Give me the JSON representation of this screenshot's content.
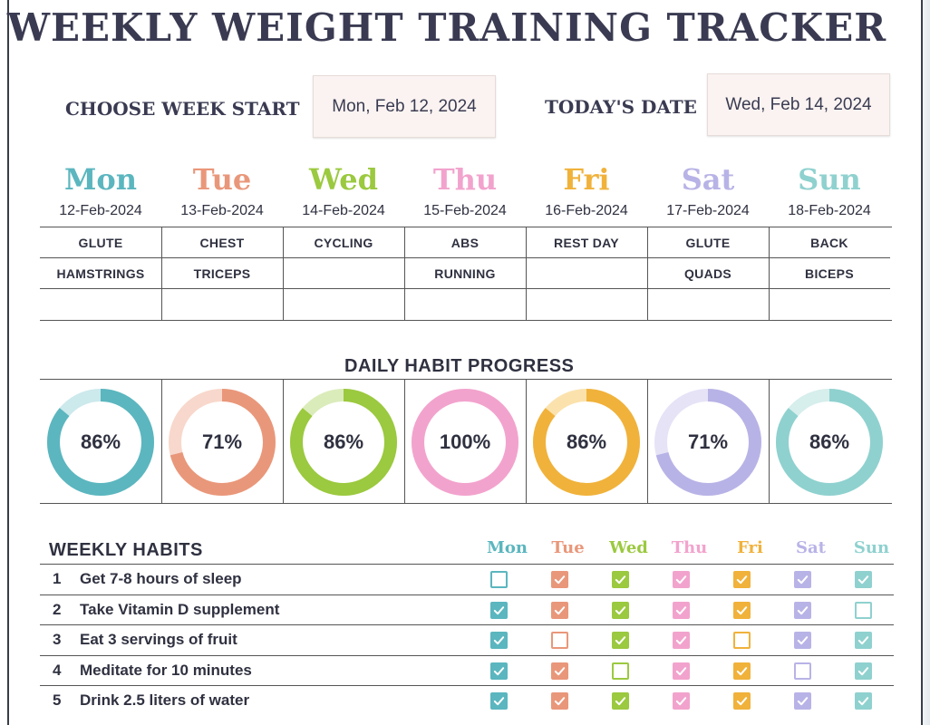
{
  "title": "WEEKLY WEIGHT TRAINING TRACKER",
  "week_start": {
    "label": "CHOOSE WEEK START",
    "value": "Mon, Feb 12, 2024"
  },
  "today": {
    "label": "TODAY'S DATE",
    "value": "Wed, Feb 14, 2024"
  },
  "colors": {
    "mon": "#5bb6bf",
    "tue": "#e9977a",
    "wed": "#9bc93f",
    "thu": "#f2a3cd",
    "fri": "#f0b23b",
    "sat": "#b8b3e6",
    "sun": "#8fd1cf"
  },
  "days": [
    {
      "name": "Mon",
      "date": "12-Feb-2024",
      "workout": [
        "GLUTE",
        "HAMSTRINGS",
        ""
      ],
      "progress": 86,
      "habit_header": "Mon"
    },
    {
      "name": "Tue",
      "date": "13-Feb-2024",
      "workout": [
        "CHEST",
        "TRICEPS",
        ""
      ],
      "progress": 71,
      "habit_header": "Tue"
    },
    {
      "name": "Wed",
      "date": "14-Feb-2024",
      "workout": [
        "CYCLING",
        "",
        ""
      ],
      "progress": 86,
      "habit_header": "Wed"
    },
    {
      "name": "Thu",
      "date": "15-Feb-2024",
      "workout": [
        "ABS",
        "RUNNING",
        ""
      ],
      "progress": 100,
      "habit_header": "Thu"
    },
    {
      "name": "Fri",
      "date": "16-Feb-2024",
      "workout": [
        "REST DAY",
        "",
        ""
      ],
      "progress": 86,
      "habit_header": "Fri"
    },
    {
      "name": "Sat",
      "date": "17-Feb-2024",
      "workout": [
        "GLUTE",
        "QUADS",
        ""
      ],
      "progress": 71,
      "habit_header": "Sat"
    },
    {
      "name": "Sun",
      "date": "18-Feb-2024",
      "workout": [
        "BACK",
        "BICEPS",
        ""
      ],
      "progress": 86,
      "habit_header": "Sun"
    }
  ],
  "progress_title": "DAILY HABIT PROGRESS",
  "progress_labels": [
    "86%",
    "71%",
    "86%",
    "100%",
    "86%",
    "71%",
    "86%"
  ],
  "habits_title": "WEEKLY HABITS",
  "habits": [
    {
      "num": "1",
      "text": "Get 7-8 hours of sleep",
      "checks": [
        false,
        true,
        true,
        true,
        true,
        true,
        true
      ]
    },
    {
      "num": "2",
      "text": "Take Vitamin D supplement",
      "checks": [
        true,
        true,
        true,
        true,
        true,
        true,
        false
      ]
    },
    {
      "num": "3",
      "text": "Eat 3 servings of fruit",
      "checks": [
        true,
        false,
        true,
        true,
        false,
        true,
        true
      ]
    },
    {
      "num": "4",
      "text": "Meditate for 10 minutes",
      "checks": [
        true,
        true,
        false,
        true,
        true,
        false,
        true
      ]
    },
    {
      "num": "5",
      "text": "Drink 2.5 liters of water",
      "checks": [
        true,
        true,
        true,
        true,
        true,
        true,
        true
      ]
    }
  ]
}
